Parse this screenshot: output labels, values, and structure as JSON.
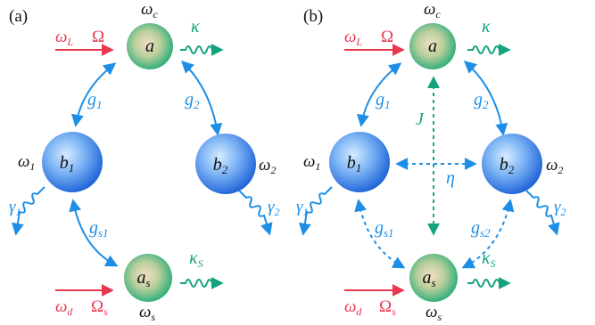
{
  "panels": [
    {
      "tag": "(a)",
      "node_a": "a",
      "freq_a": "ω",
      "freq_a_sub": "c",
      "node_b1": "b",
      "node_b1_sub": "1",
      "freq_b1": "ω",
      "freq_b1_sub": "1",
      "node_b2": "b",
      "node_b2_sub": "2",
      "freq_b2": "ω",
      "freq_b2_sub": "2",
      "node_as": "a",
      "node_as_sub": "s",
      "freq_as": "ω",
      "freq_as_sub": "s",
      "drive_top": "ω",
      "drive_top_sub": "L",
      "drive_top_amp": "Ω",
      "drive_bot": "ω",
      "drive_bot_sub": "d",
      "drive_bot_amp": "Ω",
      "drive_bot_amp_sub": "s",
      "kappa": "κ",
      "kappa_s": "κ",
      "kappa_s_sub": "S",
      "g1": "g",
      "g1_sub": "1",
      "g2": "g",
      "g2_sub": "2",
      "gs1": "g",
      "gs1_sub": "s1",
      "gamma1": "γ",
      "gamma1_sub": "1",
      "gamma2": "γ",
      "gamma2_sub": "2"
    },
    {
      "tag": "(b)",
      "node_a": "a",
      "freq_a": "ω",
      "freq_a_sub": "c",
      "node_b1": "b",
      "node_b1_sub": "1",
      "freq_b1": "ω",
      "freq_b1_sub": "1",
      "node_b2": "b",
      "node_b2_sub": "2",
      "freq_b2": "ω",
      "freq_b2_sub": "2",
      "node_as": "a",
      "node_as_sub": "s",
      "freq_as": "ω",
      "freq_as_sub": "s",
      "drive_top": "ω",
      "drive_top_sub": "L",
      "drive_top_amp": "Ω",
      "drive_bot": "ω",
      "drive_bot_sub": "d",
      "drive_bot_amp": "Ω",
      "drive_bot_amp_sub": "s",
      "kappa": "κ",
      "kappa_s": "κ",
      "kappa_s_sub": "S",
      "g1": "g",
      "g1_sub": "1",
      "g2": "g",
      "g2_sub": "2",
      "gs1": "g",
      "gs1_sub": "s1",
      "gs2": "g",
      "gs2_sub": "s2",
      "J": "J",
      "eta": "η",
      "gamma1": "γ",
      "gamma1_sub": "1",
      "gamma2": "γ",
      "gamma2_sub": "2"
    }
  ],
  "colors": {
    "drive": "#e8384f",
    "coupling": "#1c8ee6",
    "cavity_loss": "#14a37f",
    "J_link": "#20a67a",
    "blue_sphere_center": "#cfe8ff",
    "blue_sphere_edge": "#1d6fe0",
    "green_sphere_center": "#f2e0c8",
    "green_sphere_edge": "#1fb37d"
  }
}
